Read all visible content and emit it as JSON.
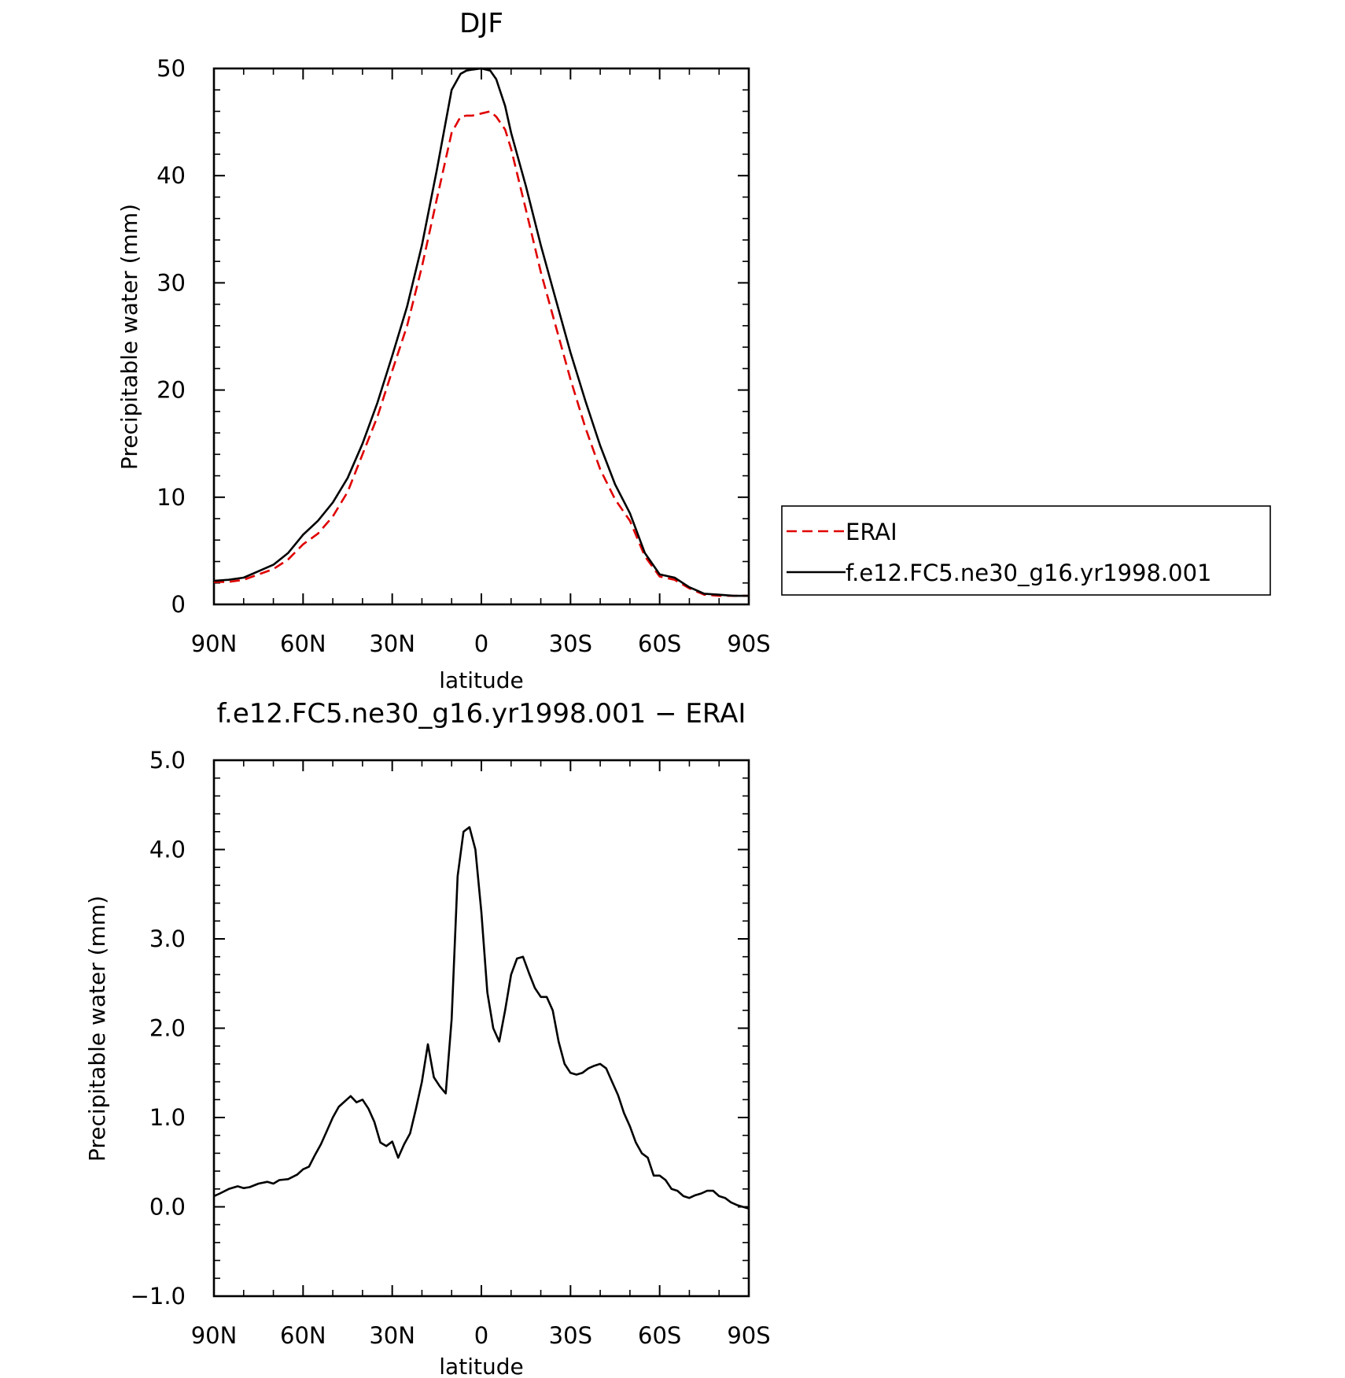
{
  "chart_data": [
    {
      "type": "line",
      "title": "DJF",
      "xlabel": "latitude",
      "ylabel": "Precipitable water (mm)",
      "xlim": [
        90,
        -90
      ],
      "ylim": [
        0,
        50
      ],
      "xticks": [
        {
          "value": 90,
          "label": "90N"
        },
        {
          "value": 60,
          "label": "60N"
        },
        {
          "value": 30,
          "label": "30N"
        },
        {
          "value": 0,
          "label": "0"
        },
        {
          "value": -30,
          "label": "30S"
        },
        {
          "value": -60,
          "label": "60S"
        },
        {
          "value": -90,
          "label": "90S"
        }
      ],
      "yticks": [
        {
          "value": 0,
          "label": "0"
        },
        {
          "value": 10,
          "label": "10"
        },
        {
          "value": 20,
          "label": "20"
        },
        {
          "value": 30,
          "label": "30"
        },
        {
          "value": 40,
          "label": "40"
        },
        {
          "value": 50,
          "label": "50"
        }
      ],
      "legend_position": "right",
      "series": [
        {
          "name": "ERAI",
          "color": "#e00000",
          "style": "dashed",
          "x": [
            90,
            85,
            80,
            75,
            70,
            65,
            60,
            55,
            50,
            45,
            40,
            35,
            30,
            25,
            20,
            15,
            10,
            7,
            5,
            3,
            0,
            -3,
            -5,
            -8,
            -10,
            -15,
            -20,
            -25,
            -30,
            -35,
            -40,
            -45,
            -50,
            -55,
            -60,
            -65,
            -70,
            -75,
            -80,
            -85,
            -88,
            -90
          ],
          "y": [
            2.1,
            2.1,
            2.3,
            2.8,
            3.3,
            4.2,
            5.6,
            6.6,
            8.2,
            10.5,
            14.0,
            17.5,
            21.8,
            26.0,
            31.5,
            37.8,
            44.0,
            45.5,
            45.6,
            45.6,
            45.8,
            46.0,
            45.5,
            44.3,
            42.5,
            36.8,
            31.0,
            26.0,
            21.0,
            16.5,
            12.6,
            9.8,
            7.8,
            4.5,
            2.6,
            2.3,
            1.5,
            0.9,
            0.8,
            0.8,
            0.8,
            0.8
          ]
        },
        {
          "name": "f.e12.FC5.ne30_g16.yr1998.001",
          "color": "#000000",
          "style": "solid",
          "x": [
            90,
            85,
            80,
            75,
            70,
            65,
            60,
            55,
            50,
            45,
            40,
            35,
            30,
            25,
            20,
            15,
            10,
            7,
            5,
            3,
            0,
            -3,
            -5,
            -8,
            -10,
            -15,
            -20,
            -25,
            -30,
            -35,
            -40,
            -45,
            -50,
            -55,
            -60,
            -65,
            -70,
            -75,
            -80,
            -85,
            -88,
            -90
          ],
          "y": [
            2.2,
            2.3,
            2.5,
            3.1,
            3.7,
            4.8,
            6.5,
            7.8,
            9.5,
            11.8,
            15.0,
            18.8,
            23.2,
            27.8,
            33.5,
            40.5,
            48.0,
            49.5,
            49.8,
            49.9,
            50.0,
            49.8,
            49.0,
            46.5,
            44.0,
            39.0,
            33.5,
            28.5,
            23.5,
            19.0,
            14.8,
            11.2,
            8.5,
            4.8,
            2.8,
            2.5,
            1.6,
            1.0,
            0.9,
            0.8,
            0.8,
            0.8
          ]
        }
      ]
    },
    {
      "type": "line",
      "title": "f.e12.FC5.ne30_g16.yr1998.001 − ERAI",
      "xlabel": "latitude",
      "ylabel": "Precipitable water (mm)",
      "xlim": [
        90,
        -90
      ],
      "ylim": [
        -1.0,
        5.0
      ],
      "xticks": [
        {
          "value": 90,
          "label": "90N"
        },
        {
          "value": 60,
          "label": "60N"
        },
        {
          "value": 30,
          "label": "30N"
        },
        {
          "value": 0,
          "label": "0"
        },
        {
          "value": -30,
          "label": "30S"
        },
        {
          "value": -60,
          "label": "60S"
        },
        {
          "value": -90,
          "label": "90S"
        }
      ],
      "yticks": [
        {
          "value": -1.0,
          "label": "−1.0"
        },
        {
          "value": 0.0,
          "label": "0.0"
        },
        {
          "value": 1.0,
          "label": "1.0"
        },
        {
          "value": 2.0,
          "label": "2.0"
        },
        {
          "value": 3.0,
          "label": "3.0"
        },
        {
          "value": 4.0,
          "label": "4.0"
        },
        {
          "value": 5.0,
          "label": "5.0"
        }
      ],
      "series": [
        {
          "color": "#000000",
          "style": "solid",
          "x": [
            90,
            88,
            85,
            82,
            80,
            78,
            75,
            72,
            70,
            68,
            65,
            62,
            60,
            58,
            56,
            54,
            52,
            50,
            48,
            46,
            44,
            42,
            40,
            38,
            36,
            34,
            32,
            30,
            28,
            26,
            24,
            22,
            20,
            18,
            16,
            14,
            12,
            10,
            8,
            6,
            4,
            2,
            0,
            -2,
            -4,
            -6,
            -8,
            -10,
            -12,
            -14,
            -16,
            -18,
            -20,
            -22,
            -24,
            -26,
            -28,
            -30,
            -32,
            -34,
            -36,
            -38,
            -40,
            -42,
            -44,
            -46,
            -48,
            -50,
            -52,
            -54,
            -56,
            -58,
            -60,
            -62,
            -64,
            -66,
            -68,
            -70,
            -72,
            -74,
            -76,
            -78,
            -80,
            -82,
            -84,
            -86,
            -88,
            -90
          ],
          "y": [
            0.12,
            0.15,
            0.2,
            0.23,
            0.21,
            0.22,
            0.26,
            0.28,
            0.26,
            0.3,
            0.31,
            0.36,
            0.42,
            0.45,
            0.58,
            0.7,
            0.85,
            1.0,
            1.12,
            1.18,
            1.24,
            1.17,
            1.2,
            1.1,
            0.95,
            0.72,
            0.68,
            0.73,
            0.55,
            0.7,
            0.82,
            1.1,
            1.4,
            1.82,
            1.45,
            1.35,
            1.27,
            2.1,
            3.7,
            4.2,
            4.25,
            4.0,
            3.3,
            2.4,
            2.0,
            1.85,
            2.2,
            2.6,
            2.78,
            2.8,
            2.62,
            2.45,
            2.35,
            2.35,
            2.2,
            1.85,
            1.6,
            1.5,
            1.48,
            1.5,
            1.55,
            1.58,
            1.6,
            1.55,
            1.4,
            1.25,
            1.05,
            0.9,
            0.72,
            0.6,
            0.55,
            0.35,
            0.35,
            0.3,
            0.2,
            0.18,
            0.12,
            0.1,
            0.13,
            0.15,
            0.18,
            0.18,
            0.12,
            0.1,
            0.05,
            0.02,
            0.0,
            -0.02
          ]
        }
      ]
    }
  ]
}
